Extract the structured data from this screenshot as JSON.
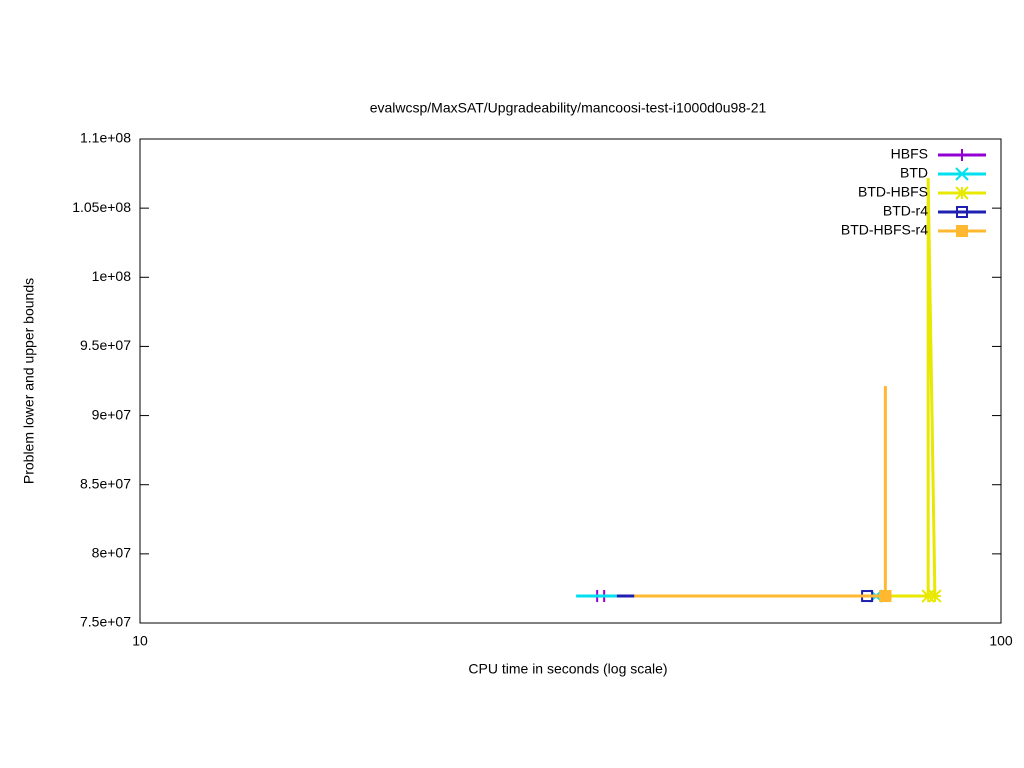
{
  "chart_data": {
    "type": "line",
    "title": "evalwcsp/MaxSAT/Upgradeability/mancoosi-test-i1000d0u98-21",
    "x_label": "CPU time in seconds (log scale)",
    "y_label": "Problem lower and upper bounds",
    "x_log_scale": true,
    "xlim": [
      10,
      100
    ],
    "xticks": [
      10,
      100
    ],
    "ylim": [
      75000000,
      110000000
    ],
    "yticks": [
      {
        "value": 75000000,
        "label": "7.5e+07"
      },
      {
        "value": 80000000,
        "label": "8e+07"
      },
      {
        "value": 85000000,
        "label": "8.5e+07"
      },
      {
        "value": 90000000,
        "label": "9e+07"
      },
      {
        "value": 95000000,
        "label": "9.5e+07"
      },
      {
        "value": 100000000,
        "label": "1e+08"
      },
      {
        "value": 105000000,
        "label": "1.05e+08"
      },
      {
        "value": 110000000,
        "label": "1.1e+08"
      }
    ],
    "legend_position": "top-right",
    "series": [
      {
        "name": "HBFS",
        "color": "#9400d3",
        "marker": "plus",
        "x": [
          33.3,
          33.96,
          34.6
        ],
        "values": [
          76950000,
          76950000,
          76950000
        ]
      },
      {
        "name": "BTD",
        "color": "#00e0f0",
        "marker": "cross",
        "x": [
          32.1,
          71.6
        ],
        "values": [
          76950000,
          76950000
        ]
      },
      {
        "name": "BTD-HBFS",
        "color": "#e8e800",
        "marker": "star",
        "x": [
          73.5,
          83.8,
          82.3,
          82.3
        ],
        "values": [
          76950000,
          76950000,
          107180000,
          76950000
        ]
      },
      {
        "name": "BTD-r4",
        "color": "#2020b0",
        "marker": "open-square",
        "x": [
          35.8,
          69.9
        ],
        "values": [
          76950000,
          76950000
        ]
      },
      {
        "name": "BTD-HBFS-r4",
        "color": "#ffb830",
        "marker": "filled-square",
        "x": [
          37.5,
          73.4,
          73.4,
          73.4
        ],
        "values": [
          76950000,
          76950000,
          92140000,
          76950000
        ]
      }
    ]
  }
}
